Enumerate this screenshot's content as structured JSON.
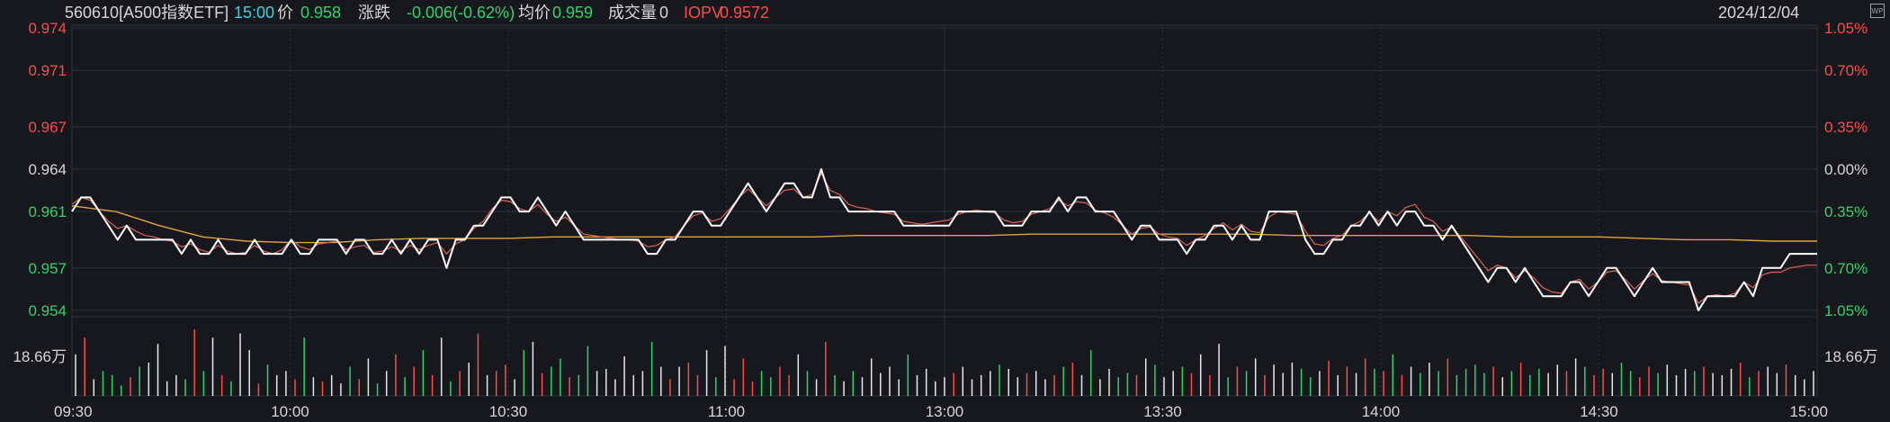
{
  "header": {
    "code": "560610[A500指数ETF]",
    "time": "15:00",
    "price_label": "价",
    "price": "0.958",
    "change_label": "涨跌",
    "change": "-0.006(-0.62%)",
    "avg_label": "均价",
    "avg": "0.959",
    "volume_label": "成交量",
    "volume": "0",
    "iopv_label": "IOPV",
    "iopv": "0.9572",
    "date": "2024/12/04",
    "icon": "wp-icon"
  },
  "colors": {
    "background": "#16181d",
    "grid": "#2c3038",
    "price_line": "#ffffff",
    "iopv_line": "#e0605a",
    "avg_line": "#e0a43a",
    "up": "#ff4a4a",
    "down": "#2ed36a",
    "neutral_text": "#d6d6d6"
  },
  "chart_data": {
    "type": "line",
    "y_left_ticks": [
      "0.974",
      "0.971",
      "0.967",
      "0.964",
      "0.961",
      "0.957",
      "0.954"
    ],
    "y_right_ticks": [
      "1.05%",
      "0.70%",
      "0.35%",
      "0.00%",
      "0.35%",
      "0.70%",
      "1.05%"
    ],
    "ylim": [
      0.9538,
      0.9742
    ],
    "x_ticks": [
      "09:30",
      "10:00",
      "10:30",
      "11:00",
      "13:00",
      "13:30",
      "14:00",
      "14:30",
      "15:00"
    ],
    "volume_label": "18.66万",
    "series": [
      {
        "name": "价",
        "values": [
          0.961,
          0.962,
          0.962,
          0.961,
          0.96,
          0.959,
          0.96,
          0.959,
          0.959,
          0.959,
          0.959,
          0.959,
          0.958,
          0.959,
          0.958,
          0.958,
          0.959,
          0.958,
          0.958,
          0.958,
          0.959,
          0.958,
          0.958,
          0.958,
          0.959,
          0.958,
          0.958,
          0.959,
          0.959,
          0.959,
          0.958,
          0.959,
          0.959,
          0.958,
          0.958,
          0.959,
          0.958,
          0.959,
          0.958,
          0.959,
          0.959,
          0.957,
          0.959,
          0.959,
          0.96,
          0.96,
          0.961,
          0.962,
          0.962,
          0.961,
          0.961,
          0.962,
          0.961,
          0.96,
          0.961,
          0.96,
          0.959,
          0.959,
          0.959,
          0.959,
          0.959,
          0.959,
          0.959,
          0.958,
          0.958,
          0.959,
          0.959,
          0.96,
          0.961,
          0.961,
          0.96,
          0.96,
          0.961,
          0.962,
          0.963,
          0.962,
          0.961,
          0.962,
          0.963,
          0.963,
          0.962,
          0.962,
          0.964,
          0.962,
          0.962,
          0.961,
          0.961,
          0.961,
          0.961,
          0.961,
          0.961,
          0.96,
          0.96,
          0.96,
          0.96,
          0.96,
          0.96,
          0.961,
          0.961,
          0.961,
          0.961,
          0.961,
          0.96,
          0.96,
          0.96,
          0.961,
          0.961,
          0.961,
          0.962,
          0.961,
          0.962,
          0.962,
          0.961,
          0.961,
          0.961,
          0.96,
          0.959,
          0.96,
          0.96,
          0.959,
          0.959,
          0.959,
          0.958,
          0.959,
          0.959,
          0.96,
          0.96,
          0.959,
          0.96,
          0.959,
          0.959,
          0.961,
          0.961,
          0.961,
          0.961,
          0.959,
          0.958,
          0.958,
          0.959,
          0.959,
          0.96,
          0.96,
          0.961,
          0.96,
          0.961,
          0.96,
          0.961,
          0.961,
          0.96,
          0.96,
          0.959,
          0.96,
          0.959,
          0.958,
          0.957,
          0.956,
          0.957,
          0.957,
          0.956,
          0.957,
          0.956,
          0.955,
          0.955,
          0.955,
          0.956,
          0.956,
          0.955,
          0.956,
          0.957,
          0.957,
          0.956,
          0.955,
          0.956,
          0.957,
          0.956,
          0.956,
          0.956,
          0.956,
          0.954,
          0.955,
          0.955,
          0.955,
          0.955,
          0.956,
          0.955,
          0.957,
          0.957,
          0.957,
          0.958,
          0.958,
          0.958,
          0.958
        ]
      },
      {
        "name": "IOPV",
        "values": [
          0.9615,
          0.962,
          0.9618,
          0.961,
          0.9603,
          0.9598,
          0.96,
          0.9596,
          0.9593,
          0.9592,
          0.959,
          0.9589,
          0.9585,
          0.9587,
          0.9583,
          0.9581,
          0.9586,
          0.9582,
          0.958,
          0.9581,
          0.9586,
          0.9582,
          0.958,
          0.9583,
          0.959,
          0.9585,
          0.9583,
          0.9587,
          0.9588,
          0.9589,
          0.9583,
          0.9585,
          0.9586,
          0.9581,
          0.9582,
          0.9585,
          0.9582,
          0.9586,
          0.9583,
          0.9586,
          0.9588,
          0.958,
          0.9587,
          0.959,
          0.9598,
          0.9603,
          0.9612,
          0.9618,
          0.9617,
          0.9612,
          0.961,
          0.9615,
          0.9608,
          0.9603,
          0.9606,
          0.96,
          0.9594,
          0.9593,
          0.9592,
          0.9591,
          0.959,
          0.959,
          0.9589,
          0.9585,
          0.9586,
          0.959,
          0.9592,
          0.96,
          0.9607,
          0.9609,
          0.9603,
          0.9605,
          0.9612,
          0.962,
          0.9626,
          0.962,
          0.9614,
          0.962,
          0.9625,
          0.9626,
          0.962,
          0.9622,
          0.9637,
          0.9625,
          0.9622,
          0.9615,
          0.9613,
          0.9612,
          0.961,
          0.9609,
          0.9608,
          0.9603,
          0.9602,
          0.9601,
          0.9602,
          0.9603,
          0.9604,
          0.9608,
          0.961,
          0.9611,
          0.961,
          0.9609,
          0.9604,
          0.9602,
          0.9603,
          0.9608,
          0.961,
          0.9612,
          0.9618,
          0.9614,
          0.9617,
          0.9616,
          0.9611,
          0.9609,
          0.9606,
          0.96,
          0.9594,
          0.9598,
          0.9599,
          0.9594,
          0.9592,
          0.9591,
          0.9586,
          0.959,
          0.9593,
          0.9598,
          0.9602,
          0.9597,
          0.9601,
          0.9596,
          0.9595,
          0.9606,
          0.961,
          0.9609,
          0.9608,
          0.9596,
          0.9587,
          0.9586,
          0.9591,
          0.9593,
          0.96,
          0.9603,
          0.9609,
          0.9603,
          0.961,
          0.9607,
          0.9613,
          0.9615,
          0.9606,
          0.9603,
          0.9596,
          0.9599,
          0.9592,
          0.9584,
          0.9576,
          0.9568,
          0.9572,
          0.957,
          0.9563,
          0.9568,
          0.9563,
          0.9556,
          0.9553,
          0.9552,
          0.956,
          0.9562,
          0.9555,
          0.956,
          0.9567,
          0.9568,
          0.9562,
          0.9555,
          0.9561,
          0.9566,
          0.9561,
          0.956,
          0.9559,
          0.9558,
          0.9545,
          0.955,
          0.9551,
          0.955,
          0.9552,
          0.956,
          0.9556,
          0.9565,
          0.9567,
          0.9567,
          0.957,
          0.9571,
          0.9572,
          0.9572
        ]
      },
      {
        "name": "均价",
        "values": [
          0.9614,
          0.961,
          0.96,
          0.9592,
          0.9589,
          0.9588,
          0.9588,
          0.959,
          0.9591,
          0.9591,
          0.9591,
          0.9592,
          0.9592,
          0.9592,
          0.9592,
          0.9592,
          0.9592,
          0.9592,
          0.9593,
          0.9593,
          0.9593,
          0.9593,
          0.9594,
          0.9594,
          0.9594,
          0.9594,
          0.9594,
          0.9594,
          0.9593,
          0.9593,
          0.9593,
          0.9593,
          0.9593,
          0.9592,
          0.9592,
          0.9592,
          0.9591,
          0.959,
          0.959,
          0.9589,
          0.9589
        ]
      }
    ],
    "volume": [
      20,
      28,
      8,
      12,
      10,
      5,
      9,
      14,
      16,
      25,
      7,
      10,
      8,
      32,
      12,
      28,
      10,
      7,
      30,
      22,
      6,
      15,
      10,
      12,
      8,
      28,
      9,
      7,
      10,
      6,
      14,
      8,
      18,
      6,
      12,
      20,
      9,
      14,
      22,
      10,
      28,
      7,
      12,
      16,
      30,
      10,
      12,
      15,
      8,
      22,
      26,
      11,
      14,
      18,
      9,
      10,
      24,
      12,
      13,
      8,
      19,
      10,
      12,
      26,
      14,
      8,
      14,
      16,
      10,
      22,
      9,
      24,
      8,
      18,
      7,
      12,
      9,
      14,
      10,
      20,
      12,
      8,
      26,
      10,
      7,
      12,
      9,
      18,
      11,
      14,
      8,
      20,
      10,
      13,
      7,
      9,
      11,
      14,
      8,
      10,
      12,
      15,
      13,
      9,
      11,
      12,
      8,
      10,
      14,
      16,
      10,
      22,
      8,
      13,
      9,
      11,
      10,
      18,
      15,
      9,
      12,
      14,
      11,
      20,
      10,
      25,
      9,
      14,
      12,
      18,
      10,
      15,
      11,
      16,
      13,
      9,
      12,
      17,
      10,
      14,
      11,
      18,
      13,
      12,
      20,
      10,
      14,
      11,
      16,
      12,
      18,
      10,
      13,
      15,
      11,
      14,
      9,
      12,
      16,
      10,
      13,
      11,
      15,
      12,
      18,
      14,
      10,
      13,
      11,
      16,
      12,
      9,
      14,
      11,
      15,
      10,
      13,
      12,
      14,
      11,
      10,
      13,
      16,
      9,
      12,
      14,
      11,
      15,
      10,
      8,
      12
    ]
  }
}
